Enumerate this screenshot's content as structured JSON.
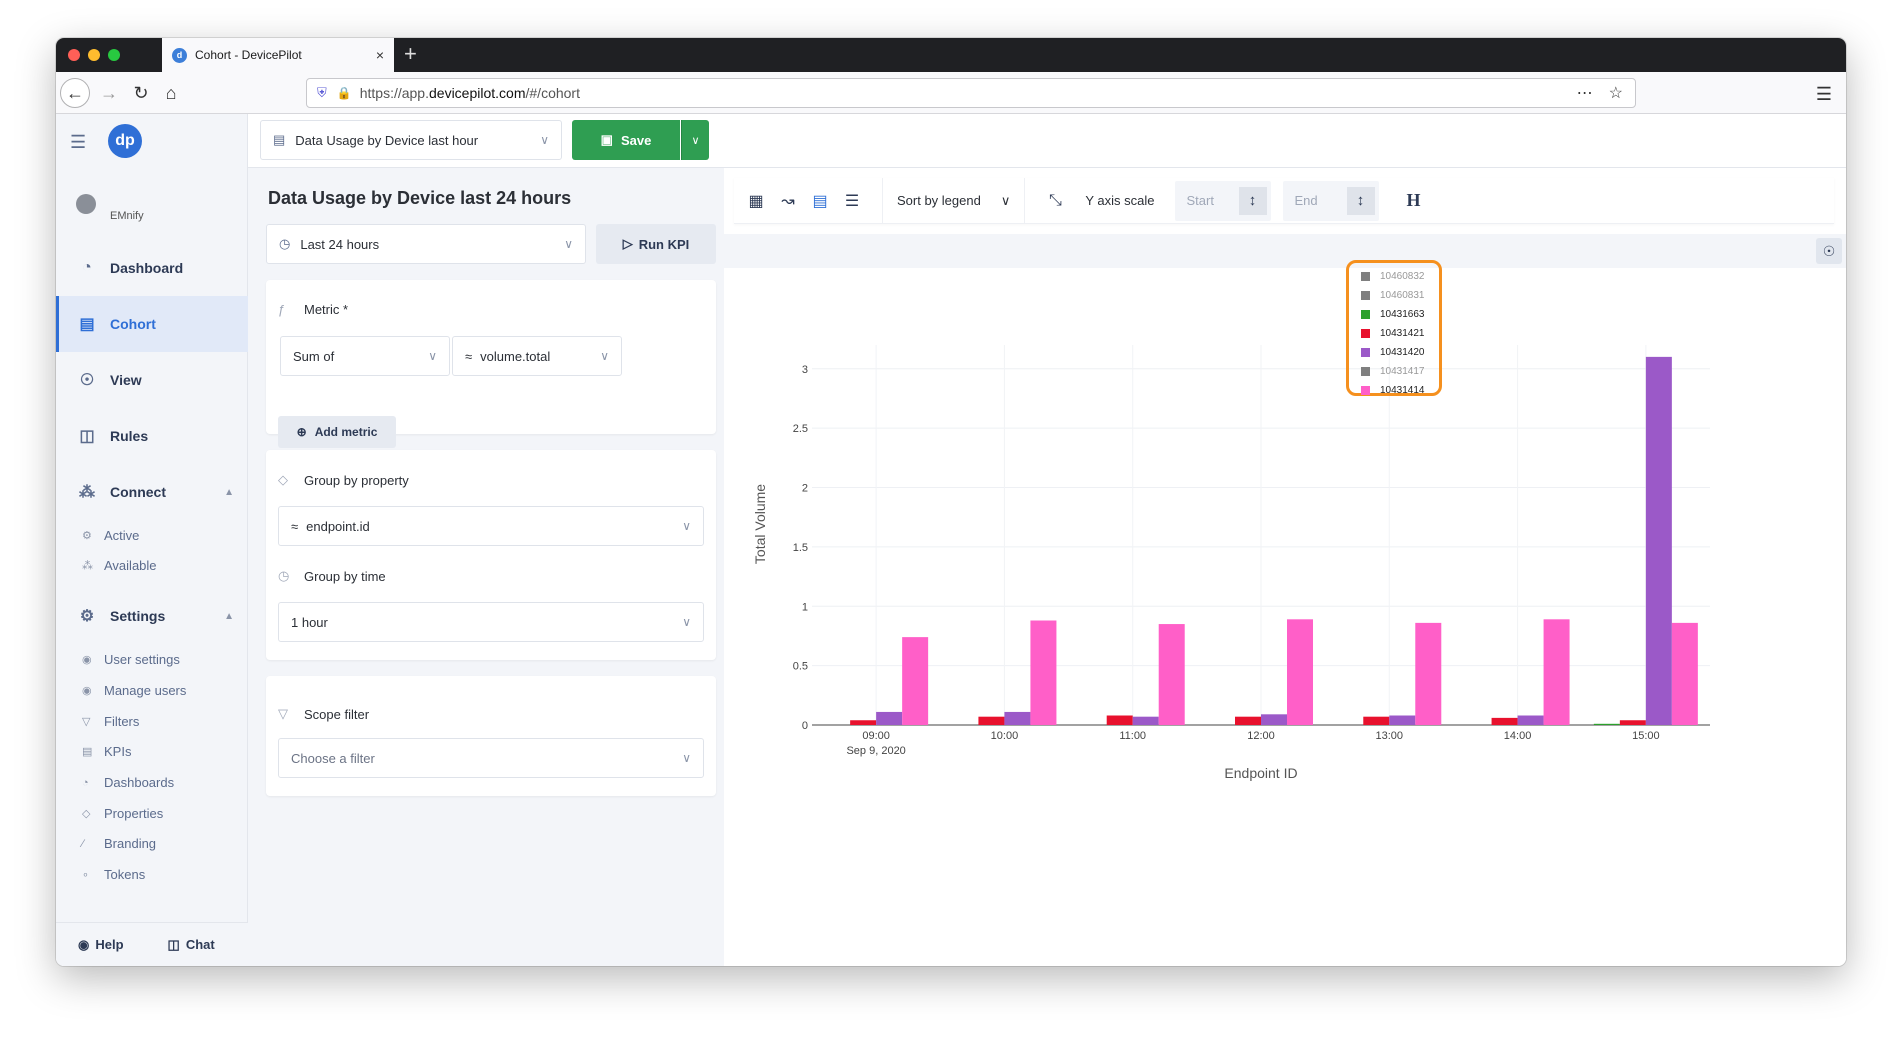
{
  "browser": {
    "tab_title": "Cohort - DevicePilot",
    "tab_close": "×",
    "new_tab": "+",
    "url_prefix": "https://app.",
    "url_host": "devicepilot.com",
    "url_path": "/#/cohort"
  },
  "sidebar": {
    "user": "EMnify",
    "items": [
      {
        "label": "Dashboard",
        "icon": "gauge-icon"
      },
      {
        "label": "Cohort",
        "icon": "bar-chart-icon"
      },
      {
        "label": "View",
        "icon": "eye-icon"
      },
      {
        "label": "Rules",
        "icon": "flow-icon"
      },
      {
        "label": "Connect",
        "icon": "connect-icon"
      },
      {
        "label": "Settings",
        "icon": "gear-icon"
      }
    ],
    "connect_sub": [
      "Active",
      "Available"
    ],
    "settings_sub": [
      "User settings",
      "Manage users",
      "Filters",
      "KPIs",
      "Dashboards",
      "Properties",
      "Branding",
      "Tokens"
    ],
    "footer": {
      "help": "Help",
      "chat": "Chat"
    }
  },
  "topbar": {
    "kpi_name": "Data Usage by Device last hour",
    "save_label": "Save"
  },
  "config": {
    "title": "Data Usage by Device last 24 hours",
    "time_range": "Last 24 hours",
    "run_label": "Run KPI",
    "metric_label": "Metric *",
    "aggregation": "Sum of",
    "metric_field": "volume.total",
    "add_metric": "Add metric",
    "group_prop_label": "Group by property",
    "group_prop_value": "endpoint.id",
    "group_time_label": "Group by time",
    "group_time_value": "1 hour",
    "scope_label": "Scope filter",
    "scope_placeholder": "Choose a filter"
  },
  "toolbar": {
    "sort_label": "Sort by legend",
    "yscale_label": "Y axis scale",
    "start_placeholder": "Start",
    "end_placeholder": "End",
    "h_label": "H"
  },
  "chart_data": {
    "type": "bar",
    "xlabel": "Endpoint ID",
    "ylabel": "Total Volume",
    "categories": [
      "09:00",
      "10:00",
      "11:00",
      "12:00",
      "13:00",
      "14:00",
      "15:00"
    ],
    "x_sublabel": "Sep 9, 2020",
    "ylim": [
      0,
      3.2
    ],
    "yticks": [
      "0",
      "0.5",
      "1",
      "1.5",
      "2",
      "2.5",
      "3"
    ],
    "grid": true,
    "legend_position": "top-right",
    "series": [
      {
        "name": "10460832",
        "color": "#7f7f7f",
        "hidden": true,
        "values": [
          0,
          0,
          0,
          0,
          0,
          0,
          0
        ]
      },
      {
        "name": "10460831",
        "color": "#7f7f7f",
        "hidden": true,
        "values": [
          0,
          0,
          0,
          0,
          0,
          0,
          0
        ]
      },
      {
        "name": "10431663",
        "color": "#2ca02c",
        "hidden": false,
        "values": [
          0,
          0,
          0,
          0,
          0,
          0,
          0.01
        ]
      },
      {
        "name": "10431421",
        "color": "#e8112d",
        "hidden": false,
        "values": [
          0.04,
          0.07,
          0.08,
          0.07,
          0.07,
          0.06,
          0.04
        ]
      },
      {
        "name": "10431420",
        "color": "#9b59c8",
        "hidden": false,
        "values": [
          0.11,
          0.11,
          0.07,
          0.09,
          0.08,
          0.08,
          3.1
        ]
      },
      {
        "name": "10431417",
        "color": "#7f7f7f",
        "hidden": true,
        "values": [
          0,
          0,
          0,
          0,
          0,
          0,
          0
        ]
      },
      {
        "name": "10431414",
        "color": "#ff5fc8",
        "hidden": false,
        "values": [
          0.74,
          0.88,
          0.85,
          0.89,
          0.86,
          0.89,
          0.86
        ]
      }
    ]
  }
}
